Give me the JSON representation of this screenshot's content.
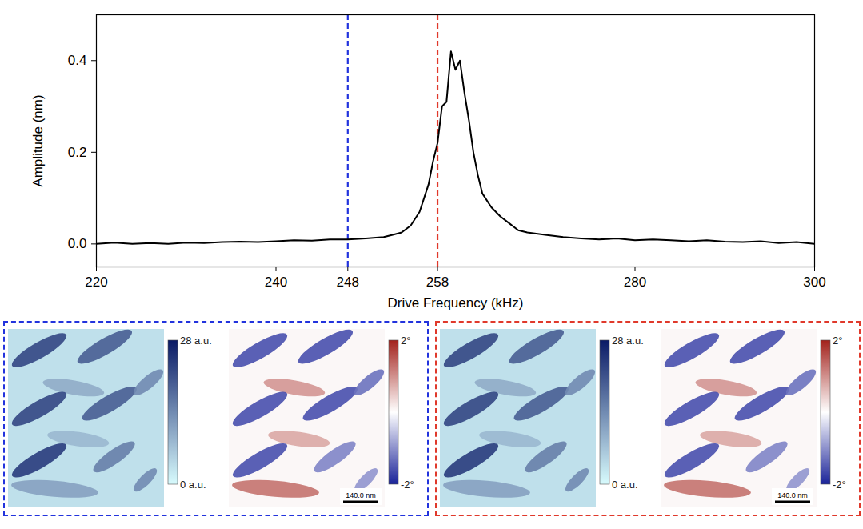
{
  "chart_data": {
    "type": "line",
    "x_label": "Drive Frequency (kHz)",
    "y_label": "Amplitude (nm)",
    "x": [
      220,
      222,
      224,
      226,
      228,
      230,
      232,
      234,
      236,
      238,
      240,
      242,
      244,
      246,
      248,
      250,
      252,
      253,
      254,
      255,
      256,
      257,
      257.5,
      258,
      258.5,
      259,
      259.5,
      260,
      260.5,
      261,
      261.5,
      262,
      262.5,
      263,
      264,
      265,
      266,
      267,
      268,
      270,
      272,
      274,
      276,
      278,
      280,
      282,
      284,
      286,
      288,
      290,
      292,
      294,
      296,
      298,
      300
    ],
    "values": [
      0.0,
      0.003,
      0.0,
      0.002,
      0.0,
      0.003,
      0.002,
      0.004,
      0.005,
      0.004,
      0.006,
      0.008,
      0.007,
      0.01,
      0.01,
      0.012,
      0.015,
      0.02,
      0.025,
      0.04,
      0.07,
      0.13,
      0.18,
      0.22,
      0.3,
      0.31,
      0.42,
      0.38,
      0.4,
      0.33,
      0.27,
      0.2,
      0.15,
      0.11,
      0.08,
      0.06,
      0.045,
      0.03,
      0.025,
      0.02,
      0.015,
      0.012,
      0.01,
      0.012,
      0.008,
      0.01,
      0.008,
      0.006,
      0.008,
      0.005,
      0.004,
      0.006,
      0.002,
      0.004,
      0.0
    ],
    "color": "#000000",
    "xlim": [
      220,
      300
    ],
    "xticks": [
      220,
      240,
      248,
      258,
      280,
      300
    ],
    "ylim": [
      -0.05,
      0.5
    ],
    "yticks": [
      {
        "value": 0,
        "label": "0.0"
      },
      {
        "value": 0.2,
        "label": "0.2"
      },
      {
        "value": 0.4,
        "label": "0.4"
      }
    ],
    "vlines": [
      {
        "value": 248,
        "color": "#2233dd",
        "line_style": "dashed"
      },
      {
        "value": 258,
        "color": "#e0392b",
        "line_style": "dashed"
      }
    ],
    "grid": false
  },
  "panels": [
    {
      "frequency": 248,
      "color": "#2233dd",
      "amplitude_colorbar": {
        "range": [
          0,
          28
        ],
        "ticks": [
          {
            "value": 0,
            "label": "0 a.u."
          },
          {
            "value": 28,
            "label": "28 a.u."
          }
        ]
      },
      "phase_colorbar": {
        "range": [
          -2,
          2
        ],
        "ticks": [
          {
            "value": -2,
            "label": "-2°"
          },
          {
            "value": 2,
            "label": "2°"
          }
        ]
      },
      "scale_bar": "140.0 nm"
    },
    {
      "frequency": 258,
      "color": "#e0392b",
      "amplitude_colorbar": {
        "range": [
          0,
          28
        ],
        "ticks": [
          {
            "value": 0,
            "label": "0 a.u."
          },
          {
            "value": 28,
            "label": "28 a.u."
          }
        ]
      },
      "phase_colorbar": {
        "range": [
          -2,
          2
        ],
        "ticks": [
          {
            "value": -2,
            "label": "-2°"
          },
          {
            "value": 2,
            "label": "2°"
          }
        ]
      },
      "scale_bar": "140.0 nm"
    }
  ]
}
